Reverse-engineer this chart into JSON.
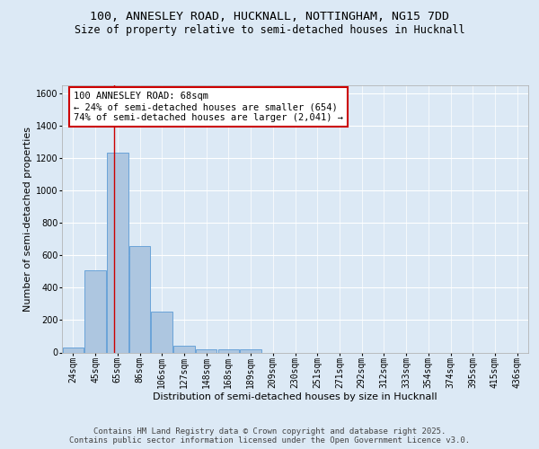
{
  "title_line1": "100, ANNESLEY ROAD, HUCKNALL, NOTTINGHAM, NG15 7DD",
  "title_line2": "Size of property relative to semi-detached houses in Hucknall",
  "xlabel": "Distribution of semi-detached houses by size in Hucknall",
  "ylabel": "Number of semi-detached properties",
  "categories": [
    "24sqm",
    "45sqm",
    "65sqm",
    "86sqm",
    "106sqm",
    "127sqm",
    "148sqm",
    "168sqm",
    "189sqm",
    "209sqm",
    "230sqm",
    "251sqm",
    "271sqm",
    "292sqm",
    "312sqm",
    "333sqm",
    "354sqm",
    "374sqm",
    "395sqm",
    "415sqm",
    "436sqm"
  ],
  "values": [
    30,
    510,
    1235,
    660,
    255,
    40,
    20,
    18,
    18,
    0,
    0,
    0,
    0,
    0,
    0,
    0,
    0,
    0,
    0,
    0,
    0
  ],
  "bar_color": "#adc6e0",
  "bar_edge_color": "#5b9bd5",
  "property_line_x": 1.85,
  "annotation_line1": "100 ANNESLEY ROAD: 68sqm",
  "annotation_line2": "← 24% of semi-detached houses are smaller (654)",
  "annotation_line3": "74% of semi-detached houses are larger (2,041) →",
  "annotation_box_color": "#ffffff",
  "annotation_box_edge_color": "#cc0000",
  "annotation_fontsize": 7.5,
  "ylim": [
    0,
    1650
  ],
  "yticks": [
    0,
    200,
    400,
    600,
    800,
    1000,
    1200,
    1400,
    1600
  ],
  "background_color": "#dce9f5",
  "plot_background_color": "#dce9f5",
  "grid_color": "#ffffff",
  "footer_text": "Contains HM Land Registry data © Crown copyright and database right 2025.\nContains public sector information licensed under the Open Government Licence v3.0.",
  "title_fontsize": 9.5,
  "subtitle_fontsize": 8.5,
  "axis_label_fontsize": 8,
  "tick_fontsize": 7,
  "footer_fontsize": 6.5
}
